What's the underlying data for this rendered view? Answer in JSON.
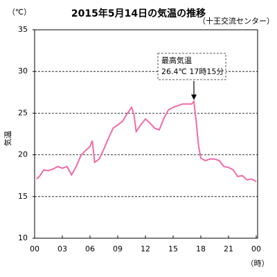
{
  "chart_data": {
    "type": "line",
    "title": "2015年5月14日の気温の推移",
    "subtitle": "（十王交流センター）",
    "y_unit": "（℃）",
    "y_label": "気温",
    "x_unit": "（時）",
    "annotation": {
      "lines": [
        "最高気温",
        "26.4℃  17時15分"
      ],
      "x": 17.25,
      "y": 26.4
    },
    "xlim": [
      0,
      24
    ],
    "xticks": [
      {
        "value": 0,
        "label": "00"
      },
      {
        "value": 3,
        "label": "03"
      },
      {
        "value": 6,
        "label": "06"
      },
      {
        "value": 9,
        "label": "09"
      },
      12,
      15,
      18,
      21,
      {
        "value": 24,
        "label": "00"
      }
    ],
    "ylim": [
      10,
      35
    ],
    "yticks": [
      10,
      15,
      20,
      25,
      30,
      35
    ],
    "grid": true,
    "series": [
      {
        "name": "気温",
        "color": "#f06aa8",
        "x": [
          0.2,
          0.5,
          1,
          1.5,
          2,
          2.5,
          3,
          3.5,
          4,
          4.5,
          5,
          5.5,
          6,
          6.25,
          6.5,
          7,
          7.5,
          8,
          8.5,
          9,
          9.5,
          10,
          10.5,
          10.75,
          11,
          11.5,
          12,
          12.5,
          13,
          13.5,
          14,
          14.5,
          15,
          15.5,
          16,
          16.5,
          17,
          17.25,
          17.5,
          17.75,
          18,
          18.5,
          19,
          19.5,
          20,
          20.5,
          21,
          21.5,
          22,
          22.5,
          23,
          23.5,
          24
        ],
        "values": [
          17.1,
          17.4,
          18.2,
          18.1,
          18.3,
          18.6,
          18.4,
          18.6,
          17.6,
          18.6,
          19.9,
          20.5,
          21.0,
          21.7,
          19.1,
          19.5,
          20.7,
          22.0,
          23.2,
          23.6,
          24.0,
          24.9,
          25.7,
          24.9,
          22.8,
          23.6,
          24.3,
          23.8,
          23.2,
          23.0,
          24.4,
          25.4,
          25.7,
          25.9,
          26.1,
          26.1,
          26.1,
          26.4,
          24.0,
          21.1,
          19.6,
          19.3,
          19.5,
          19.5,
          19.3,
          18.6,
          18.5,
          18.2,
          17.4,
          17.5,
          17.0,
          17.1,
          16.8
        ]
      }
    ]
  }
}
